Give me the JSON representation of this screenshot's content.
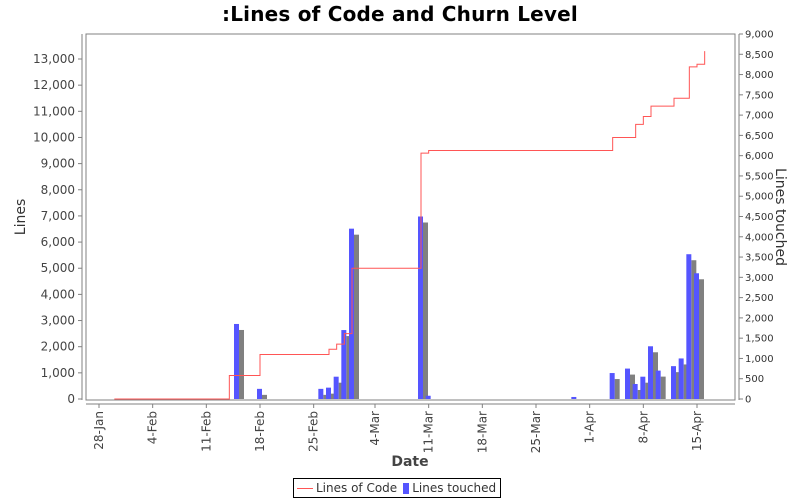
{
  "chart_data": {
    "type": "bar+line",
    "title": ":Lines of Code and Churn Level",
    "xlabel": "Date",
    "ylabel": "Lines",
    "y2label": "Lines touched",
    "ylim": [
      0,
      13900
    ],
    "y2lim": [
      0,
      9000
    ],
    "grid": false,
    "legend_position": "bottom",
    "x_tick_labels": [
      "28-Jan",
      "4-Feb",
      "11-Feb",
      "18-Feb",
      "25-Feb",
      "4-Mar",
      "11-Mar",
      "18-Mar",
      "25-Mar",
      "1-Apr",
      "8-Apr",
      "15-Apr"
    ],
    "y_tick_labels": [
      "0",
      "1,000",
      "2,000",
      "3,000",
      "4,000",
      "5,000",
      "6,000",
      "7,000",
      "8,000",
      "9,000",
      "10,000",
      "11,000",
      "12,000",
      "13,000"
    ],
    "y2_tick_labels": [
      "0",
      "500",
      "1,000",
      "1,500",
      "2,000",
      "2,500",
      "3,000",
      "3,500",
      "4,000",
      "4,500",
      "5,000",
      "5,500",
      "6,000",
      "6,500",
      "7,000",
      "7,500",
      "8,000",
      "8,500",
      "9,000"
    ],
    "series": [
      {
        "name": "Lines of Code",
        "type": "line",
        "axis": "left",
        "color": "#ff5555",
        "points": [
          {
            "date": "30-Jan",
            "value": 0
          },
          {
            "date": "14-Feb",
            "value": 0
          },
          {
            "date": "14-Feb",
            "value": 900
          },
          {
            "date": "18-Feb",
            "value": 900
          },
          {
            "date": "18-Feb",
            "value": 1700
          },
          {
            "date": "26-Feb",
            "value": 1700
          },
          {
            "date": "27-Feb",
            "value": 1900
          },
          {
            "date": "28-Feb",
            "value": 2100
          },
          {
            "date": "29-Feb",
            "value": 2500
          },
          {
            "date": "1-Mar",
            "value": 5000
          },
          {
            "date": "10-Mar",
            "value": 5000
          },
          {
            "date": "10-Mar",
            "value": 9400
          },
          {
            "date": "11-Mar",
            "value": 9500
          },
          {
            "date": "4-Apr",
            "value": 9500
          },
          {
            "date": "4-Apr",
            "value": 10000
          },
          {
            "date": "7-Apr",
            "value": 10000
          },
          {
            "date": "7-Apr",
            "value": 10500
          },
          {
            "date": "8-Apr",
            "value": 10800
          },
          {
            "date": "9-Apr",
            "value": 11200
          },
          {
            "date": "11-Apr",
            "value": 11200
          },
          {
            "date": "12-Apr",
            "value": 11500
          },
          {
            "date": "14-Apr",
            "value": 11500
          },
          {
            "date": "14-Apr",
            "value": 12700
          },
          {
            "date": "15-Apr",
            "value": 12800
          },
          {
            "date": "16-Apr",
            "value": 13300
          }
        ]
      },
      {
        "name": "Lines touched",
        "type": "bar",
        "axis": "right",
        "color": "#5555ff",
        "shadow_color": "#808080",
        "points": [
          {
            "date": "15-Feb",
            "value": 1850
          },
          {
            "date": "18-Feb",
            "value": 250
          },
          {
            "date": "26-Feb",
            "value": 250
          },
          {
            "date": "27-Feb",
            "value": 280
          },
          {
            "date": "28-Feb",
            "value": 550
          },
          {
            "date": "29-Feb",
            "value": 1700
          },
          {
            "date": "1-Mar",
            "value": 4200
          },
          {
            "date": "10-Mar",
            "value": 4500
          },
          {
            "date": "11-Mar",
            "value": 80
          },
          {
            "date": "30-Mar",
            "value": 50
          },
          {
            "date": "4-Apr",
            "value": 640
          },
          {
            "date": "6-Apr",
            "value": 750
          },
          {
            "date": "7-Apr",
            "value": 370
          },
          {
            "date": "8-Apr",
            "value": 550
          },
          {
            "date": "9-Apr",
            "value": 1300
          },
          {
            "date": "10-Apr",
            "value": 700
          },
          {
            "date": "12-Apr",
            "value": 810
          },
          {
            "date": "13-Apr",
            "value": 1000
          },
          {
            "date": "14-Apr",
            "value": 3570
          },
          {
            "date": "15-Apr",
            "value": 3100
          }
        ]
      }
    ]
  },
  "legend": {
    "items": [
      {
        "label": "Lines of Code",
        "color": "#ff5555"
      },
      {
        "label": "Lines touched",
        "color": "#5555ff"
      }
    ]
  }
}
